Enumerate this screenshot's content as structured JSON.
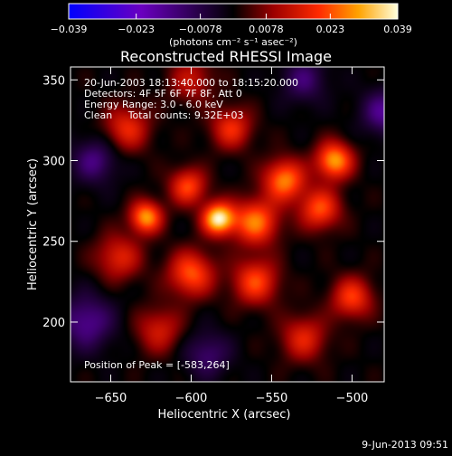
{
  "chart_data": {
    "type": "heatmap",
    "title": "Reconstructed RHESSI Image",
    "xlabel": "Heliocentric X (arcsec)",
    "ylabel": "Heliocentric Y (arcsec)",
    "xlim": [
      -675,
      -480
    ],
    "ylim": [
      163,
      358
    ],
    "xticks": [
      -650,
      -600,
      -550,
      -500
    ],
    "yticks": [
      200,
      250,
      300,
      350
    ],
    "xtick_labels": [
      "−650",
      "−600",
      "−550",
      "−500"
    ],
    "ytick_labels": [
      "200",
      "250",
      "300",
      "350"
    ],
    "colorbar": {
      "ticks": [
        -0.039,
        -0.023,
        -0.0078,
        0.0078,
        0.023,
        0.039
      ],
      "tick_labels": [
        "−0.039",
        "−0.023",
        "−0.0078",
        "0.0078",
        "0.023",
        "0.039"
      ],
      "units": "(photons cm⁻² s⁻¹ asec⁻²)",
      "range": [
        -0.039,
        0.039
      ]
    },
    "annotations": {
      "time": "20-Jun-2003 18:13:40.000 to 18:15:20.000",
      "detectors": "Detectors: 4F 5F 6F 7F 8F, Att 0",
      "energy": "Energy Range: 3.0 - 6.0 keV",
      "clean": "Clean     Total counts: 9.32E+03",
      "peak": "Position of Peak = [-583,264]"
    },
    "peak": {
      "x": -583,
      "y": 264,
      "value": 0.039
    },
    "sources": [
      {
        "x": -583,
        "y": 264,
        "amp": 1.0,
        "sigma": 7
      },
      {
        "x": -628,
        "y": 265,
        "amp": 0.78,
        "sigma": 7
      },
      {
        "x": -602,
        "y": 284,
        "amp": 0.58,
        "sigma": 8
      },
      {
        "x": -560,
        "y": 262,
        "amp": 0.7,
        "sigma": 10
      },
      {
        "x": -542,
        "y": 288,
        "amp": 0.72,
        "sigma": 9
      },
      {
        "x": -511,
        "y": 300,
        "amp": 0.8,
        "sigma": 8
      },
      {
        "x": -520,
        "y": 270,
        "amp": 0.6,
        "sigma": 9
      },
      {
        "x": -600,
        "y": 230,
        "amp": 0.62,
        "sigma": 10
      },
      {
        "x": -645,
        "y": 240,
        "amp": 0.45,
        "sigma": 10
      },
      {
        "x": -560,
        "y": 225,
        "amp": 0.58,
        "sigma": 10
      },
      {
        "x": -640,
        "y": 320,
        "amp": 0.48,
        "sigma": 10
      },
      {
        "x": -575,
        "y": 320,
        "amp": 0.5,
        "sigma": 9
      },
      {
        "x": -500,
        "y": 215,
        "amp": 0.55,
        "sigma": 9
      },
      {
        "x": -530,
        "y": 190,
        "amp": 0.45,
        "sigma": 10
      },
      {
        "x": -620,
        "y": 195,
        "amp": 0.4,
        "sigma": 10
      },
      {
        "x": -600,
        "y": 350,
        "amp": 0.35,
        "sigma": 10
      },
      {
        "x": -660,
        "y": 300,
        "amp": -0.4,
        "sigma": 10
      },
      {
        "x": -665,
        "y": 200,
        "amp": -0.45,
        "sigma": 12
      },
      {
        "x": -480,
        "y": 330,
        "amp": -0.45,
        "sigma": 10
      },
      {
        "x": -530,
        "y": 350,
        "amp": -0.35,
        "sigma": 10
      },
      {
        "x": -590,
        "y": 180,
        "amp": -0.35,
        "sigma": 10
      }
    ],
    "grid": false
  },
  "footer": {
    "date": "9-Jun-2013 09:51"
  }
}
